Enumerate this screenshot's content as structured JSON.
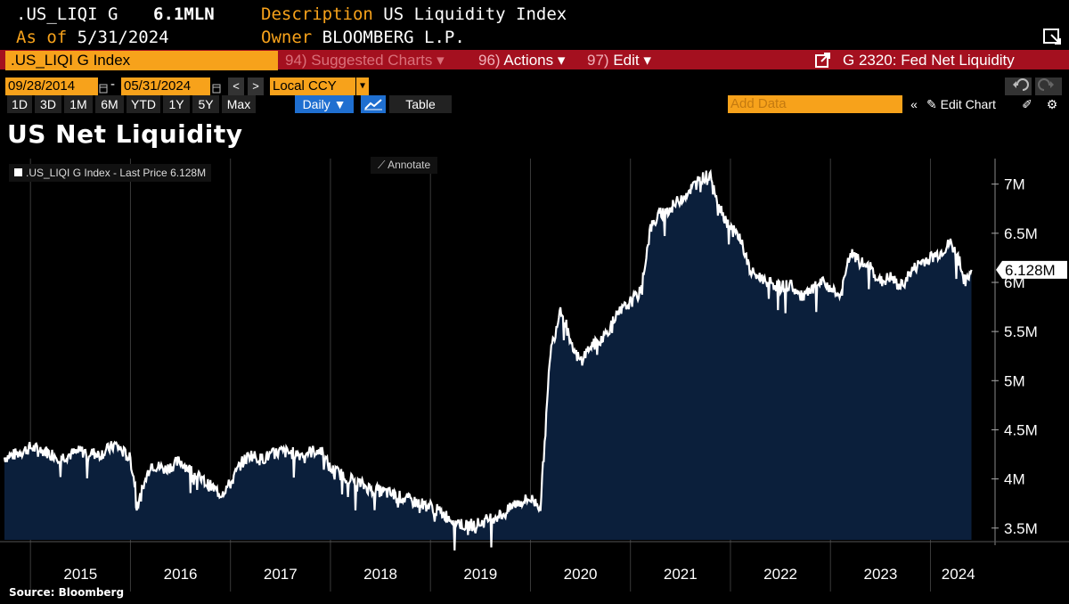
{
  "header": {
    "ticker": ".US_LIQI G",
    "value": "6.1MLN",
    "description_label": "Description",
    "description_value": "US Liquidity Index",
    "asof_label": "As of",
    "asof_value": "5/31/2024",
    "owner_label": "Owner",
    "owner_value": "BLOOMBERG L.P."
  },
  "toolbar": {
    "security": ".US_LIQI G Index",
    "suggested_charts": "94) Suggested Charts ▾",
    "actions_num": "96)",
    "actions": "Actions ▾",
    "edit_num": "97)",
    "edit": "Edit ▾",
    "chart_name": "G 2320: Fed Net Liquidity"
  },
  "range": {
    "start": "09/28/2014",
    "end": "05/31/2024",
    "currency": "Local CCY"
  },
  "periods": [
    "1D",
    "3D",
    "1M",
    "6M",
    "YTD",
    "1Y",
    "5Y",
    "Max"
  ],
  "frequency": "Daily ▼",
  "table_label": "Table",
  "add_data_placeholder": "Add Data",
  "edit_chart": "Edit Chart",
  "annotate": "Annotate",
  "source": "Source: Bloomberg",
  "colors": {
    "accent": "#f7a21b",
    "red": "#a4101f",
    "area": "#0b1f3b",
    "line": "#ffffff"
  },
  "chart_data": {
    "type": "area",
    "title": "US Net Liquidity",
    "legend": ".US_LIQI G Index - Last Price 6.128M",
    "last_label": "6.128M",
    "ylim": [
      3.38,
      7.26
    ],
    "yticks": [
      3.5,
      4.0,
      4.5,
      5.0,
      5.5,
      6.0,
      6.5,
      7.0
    ],
    "ytick_labels": [
      "3.5M",
      "4M",
      "4.5M",
      "5M",
      "5.5M",
      "6M",
      "6.5M",
      "7M"
    ],
    "xlim": [
      2014.74,
      2024.45
    ],
    "xticks": [
      2015,
      2016,
      2017,
      2018,
      2019,
      2020,
      2021,
      2022,
      2023,
      2024
    ],
    "series": [
      {
        "name": ".US_LIQI G Index",
        "x": [
          2014.74,
          2014.85,
          2015.0,
          2015.15,
          2015.3,
          2015.5,
          2015.7,
          2015.85,
          2016.0,
          2016.08,
          2016.2,
          2016.35,
          2016.5,
          2016.7,
          2016.9,
          2017.0,
          2017.1,
          2017.2,
          2017.3,
          2017.5,
          2017.7,
          2017.9,
          2018.0,
          2018.2,
          2018.4,
          2018.6,
          2018.8,
          2019.0,
          2019.2,
          2019.35,
          2019.5,
          2019.6,
          2019.75,
          2019.85,
          2020.0,
          2020.1,
          2020.15,
          2020.2,
          2020.25,
          2020.3,
          2020.35,
          2020.4,
          2020.5,
          2020.6,
          2020.7,
          2020.8,
          2020.9,
          2021.0,
          2021.1,
          2021.2,
          2021.3,
          2021.4,
          2021.5,
          2021.6,
          2021.7,
          2021.8,
          2021.9,
          2022.0,
          2022.1,
          2022.2,
          2022.3,
          2022.4,
          2022.5,
          2022.6,
          2022.7,
          2022.8,
          2022.9,
          2023.0,
          2023.1,
          2023.2,
          2023.3,
          2023.4,
          2023.5,
          2023.6,
          2023.7,
          2023.8,
          2023.9,
          2024.0,
          2024.1,
          2024.2,
          2024.3,
          2024.35,
          2024.41
        ],
        "values": [
          4.22,
          4.25,
          4.32,
          4.28,
          4.22,
          4.28,
          4.25,
          4.35,
          4.2,
          3.75,
          4.15,
          4.1,
          4.18,
          4.0,
          3.85,
          3.95,
          4.15,
          4.25,
          4.2,
          4.28,
          4.25,
          4.3,
          4.1,
          4.0,
          3.9,
          3.85,
          3.78,
          3.72,
          3.6,
          3.52,
          3.55,
          3.6,
          3.65,
          3.75,
          3.8,
          3.72,
          4.5,
          5.3,
          5.5,
          5.75,
          5.6,
          5.35,
          5.2,
          5.35,
          5.4,
          5.55,
          5.7,
          5.8,
          5.9,
          6.55,
          6.7,
          6.75,
          6.85,
          6.95,
          7.05,
          7.1,
          6.75,
          6.55,
          6.45,
          6.1,
          6.05,
          6.0,
          5.95,
          5.98,
          5.85,
          5.9,
          6.0,
          5.95,
          5.85,
          6.3,
          6.2,
          6.15,
          6.0,
          6.05,
          5.95,
          6.1,
          6.2,
          6.25,
          6.3,
          6.4,
          6.2,
          5.98,
          6.128
        ]
      }
    ]
  }
}
